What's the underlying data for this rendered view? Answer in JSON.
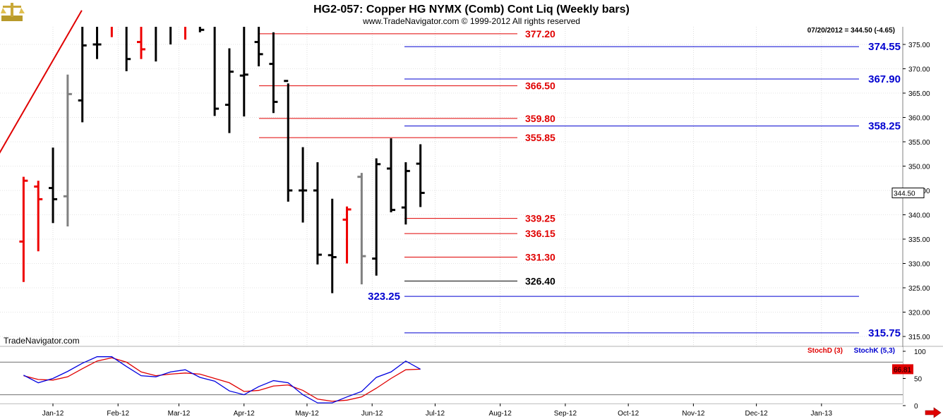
{
  "header": {
    "title": "HG2-057:  Copper HG NYMX (Comb) Cont Liq  (Weekly bars)",
    "copyright": "www.TradeNavigator.com © 1999-2012 All rights reserved",
    "last_price_readout": "07/20/2012 = 344.50 (-4.65)",
    "watermark": "TradeNavigator.com"
  },
  "colors": {
    "up_bar": "#000000",
    "down_bar": "#ee0000",
    "neutral_bar": "#808080",
    "red_level": "#e00000",
    "blue_level": "#0000d0",
    "stoch_d": "#e00000",
    "stoch_k": "#0000e0",
    "grid": "#c8c8c8"
  },
  "icons": {
    "logo": "gold-scales-icon",
    "scroll": "red-right-arrow-icon"
  },
  "chart_data": [
    {
      "type": "ohlc",
      "title": "HG2-057:  Copper HG NYMX (Comb) Cont Liq  (Weekly bars)",
      "xlabel": "",
      "ylabel": "",
      "ylim": [
        312,
        380
      ],
      "y_ticks": [
        315,
        320,
        325,
        330,
        335,
        340,
        345,
        350,
        355,
        360,
        365,
        370,
        375
      ],
      "y_tick_labels": [
        "315.00",
        "320.00",
        "325.00",
        "330.00",
        "335.00",
        "340.00",
        "345.00",
        "350.00",
        "355.00",
        "360.00",
        "365.00",
        "370.00",
        "375.00"
      ],
      "x_months": [
        "Jan-12",
        "Feb-12",
        "Mar-12",
        "Apr-12",
        "May-12",
        "Jun-12",
        "Jul-12",
        "Aug-12",
        "Sep-12",
        "Oct-12",
        "Nov-12",
        "Dec-12",
        "Jan-13"
      ],
      "grid": true,
      "bars": [
        {
          "date": "2011-12-16",
          "open": 334.5,
          "high": 347.8,
          "low": 326.2,
          "close": 347.0,
          "color": "down"
        },
        {
          "date": "2011-12-23",
          "open": 345.8,
          "high": 347.0,
          "low": 332.5,
          "close": 343.2,
          "color": "down"
        },
        {
          "date": "2011-12-30",
          "open": 345.5,
          "high": 353.8,
          "low": 338.3,
          "close": 343.2,
          "color": "up"
        },
        {
          "date": "2012-01-06",
          "open": 343.8,
          "high": 368.8,
          "low": 337.6,
          "close": 364.8,
          "color": "neutral"
        },
        {
          "date": "2012-01-13",
          "open": 363.5,
          "high": 382.0,
          "low": 359.0,
          "close": 374.8,
          "color": "up"
        },
        {
          "date": "2012-01-20",
          "open": 375.0,
          "high": 382.0,
          "low": 372.0,
          "close": 375.0,
          "color": "up"
        },
        {
          "date": "2012-01-27",
          "open": 380.0,
          "high": 382.0,
          "low": 376.5,
          "close": 380.0,
          "color": "down"
        },
        {
          "date": "2012-02-03",
          "open": 381.0,
          "high": 382.0,
          "low": 369.5,
          "close": 372.0,
          "color": "up"
        },
        {
          "date": "2012-02-10",
          "open": 375.5,
          "high": 382.0,
          "low": 372.0,
          "close": 374.0,
          "color": "down"
        },
        {
          "date": "2012-02-17",
          "open": 380.0,
          "high": 382.0,
          "low": 371.5,
          "close": 380.0,
          "color": "up"
        },
        {
          "date": "2012-02-24",
          "open": 380.0,
          "high": 382.0,
          "low": 375.0,
          "close": 380.0,
          "color": "up"
        },
        {
          "date": "2012-03-02",
          "open": 381.0,
          "high": 382.0,
          "low": 376.0,
          "close": 380.0,
          "color": "down"
        },
        {
          "date": "2012-03-09",
          "open": 380.0,
          "high": 382.0,
          "low": 377.5,
          "close": 378.0,
          "color": "up"
        },
        {
          "date": "2012-03-16",
          "open": 379.5,
          "high": 382.0,
          "low": 360.3,
          "close": 361.8,
          "color": "up"
        },
        {
          "date": "2012-03-23",
          "open": 362.6,
          "high": 374.2,
          "low": 356.8,
          "close": 369.4,
          "color": "up"
        },
        {
          "date": "2012-03-30",
          "open": 368.6,
          "high": 382.0,
          "low": 360.2,
          "close": 368.8,
          "color": "up"
        },
        {
          "date": "2012-04-06",
          "open": 375.5,
          "high": 382.0,
          "low": 370.5,
          "close": 373.0,
          "color": "up"
        },
        {
          "date": "2012-04-13",
          "open": 371.0,
          "high": 377.5,
          "low": 360.9,
          "close": 363.2,
          "color": "up"
        },
        {
          "date": "2012-04-20",
          "open": 367.5,
          "high": 367.0,
          "low": 342.7,
          "close": 345.0,
          "color": "up"
        },
        {
          "date": "2012-04-27",
          "open": 345.0,
          "high": 353.9,
          "low": 338.4,
          "close": 345.0,
          "color": "up"
        },
        {
          "date": "2012-05-04",
          "open": 345.0,
          "high": 350.8,
          "low": 329.8,
          "close": 331.8,
          "color": "up"
        },
        {
          "date": "2012-05-11",
          "open": 331.7,
          "high": 343.3,
          "low": 323.9,
          "close": 331.3,
          "color": "up"
        },
        {
          "date": "2012-05-18",
          "open": 339.0,
          "high": 341.7,
          "low": 330.0,
          "close": 341.1,
          "color": "down"
        },
        {
          "date": "2012-05-25",
          "open": 347.8,
          "high": 348.6,
          "low": 325.7,
          "close": 331.5,
          "color": "neutral"
        },
        {
          "date": "2012-06-01",
          "open": 331.0,
          "high": 351.6,
          "low": 327.5,
          "close": 350.4,
          "color": "up"
        },
        {
          "date": "2012-06-08",
          "open": 349.5,
          "high": 355.7,
          "low": 340.5,
          "close": 341.0,
          "color": "up"
        },
        {
          "date": "2012-06-15",
          "open": 341.5,
          "high": 350.8,
          "low": 338.0,
          "close": 349.0,
          "color": "up"
        },
        {
          "date": "2012-06-22",
          "open": 350.5,
          "high": 354.5,
          "low": 341.6,
          "close": 344.5,
          "color": "up"
        }
      ],
      "levels": [
        {
          "value": 377.2,
          "label": "377.20",
          "color": "red"
        },
        {
          "value": 374.55,
          "label": "374.55",
          "color": "blue"
        },
        {
          "value": 367.9,
          "label": "367.90",
          "color": "blue"
        },
        {
          "value": 366.5,
          "label": "366.50",
          "color": "red"
        },
        {
          "value": 359.8,
          "label": "359.80",
          "color": "red"
        },
        {
          "value": 358.25,
          "label": "358.25",
          "color": "blue"
        },
        {
          "value": 355.85,
          "label": "355.85",
          "color": "red"
        },
        {
          "value": 339.25,
          "label": "339.25",
          "color": "red"
        },
        {
          "value": 336.15,
          "label": "336.15",
          "color": "red"
        },
        {
          "value": 331.3,
          "label": "331.30",
          "color": "red"
        },
        {
          "value": 326.4,
          "label": "326.40",
          "color": "black"
        },
        {
          "value": 323.25,
          "label": "323.25",
          "color": "blue"
        },
        {
          "value": 315.75,
          "label": "315.75",
          "color": "blue"
        }
      ],
      "trendline": {
        "from": {
          "date": "2011-12-09",
          "value": 351.0
        },
        "to": {
          "date": "2012-01-06",
          "value": 382.0
        }
      },
      "last_price_tag": "344.50"
    },
    {
      "type": "line",
      "title": "",
      "ylim": [
        0,
        100
      ],
      "y_ticks": [
        0,
        50,
        100
      ],
      "y_tick_labels": [
        "0",
        "50",
        "100"
      ],
      "reference_lines": [
        80,
        20
      ],
      "grid": true,
      "series": [
        {
          "name": "StochD (3)",
          "color": "red",
          "values": [
            55,
            48,
            47,
            53,
            68,
            82,
            88,
            80,
            62,
            55,
            58,
            60,
            58,
            50,
            42,
            26,
            28,
            36,
            38,
            28,
            12,
            8,
            10,
            16,
            32,
            50,
            66,
            67
          ]
        },
        {
          "name": "StochK (5,3)",
          "color": "blue",
          "values": [
            56,
            42,
            50,
            63,
            78,
            90,
            90,
            72,
            55,
            53,
            62,
            66,
            52,
            45,
            27,
            20,
            35,
            46,
            42,
            20,
            5,
            5,
            16,
            26,
            52,
            62,
            82,
            67
          ]
        }
      ],
      "last_value_tag": "66.81"
    }
  ]
}
